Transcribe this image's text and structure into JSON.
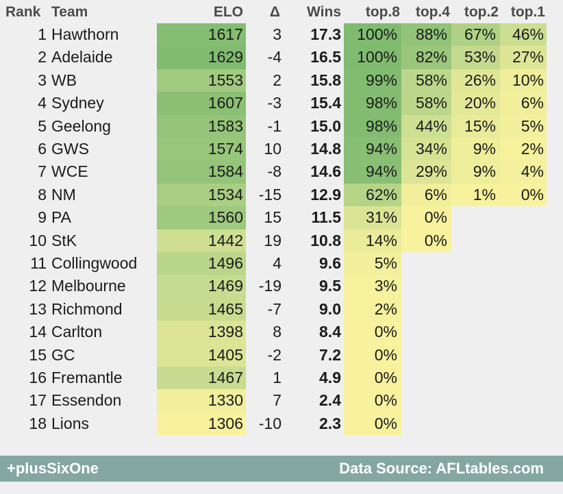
{
  "colors": {
    "high": "#80bb70",
    "mid": "#c7dc90",
    "low": "#f8f29e",
    "footer_bg": "#84a7a2"
  },
  "chart_data": {
    "type": "table",
    "columns": [
      "Rank",
      "Team",
      "ELO",
      "Δ",
      "Wins",
      "top.8",
      "top.4",
      "top.2",
      "top.1"
    ],
    "rows": [
      {
        "rank": "1",
        "team": "Hawthorn",
        "elo": "1617",
        "delta": "3",
        "wins": "17.3",
        "top8": "100%",
        "top4": "88%",
        "top2": "67%",
        "top1": "46%"
      },
      {
        "rank": "2",
        "team": "Adelaide",
        "elo": "1629",
        "delta": "-4",
        "wins": "16.5",
        "top8": "100%",
        "top4": "82%",
        "top2": "53%",
        "top1": "27%"
      },
      {
        "rank": "3",
        "team": "WB",
        "elo": "1553",
        "delta": "2",
        "wins": "15.8",
        "top8": "99%",
        "top4": "58%",
        "top2": "26%",
        "top1": "10%"
      },
      {
        "rank": "4",
        "team": "Sydney",
        "elo": "1607",
        "delta": "-3",
        "wins": "15.4",
        "top8": "98%",
        "top4": "58%",
        "top2": "20%",
        "top1": "6%"
      },
      {
        "rank": "5",
        "team": "Geelong",
        "elo": "1583",
        "delta": "-1",
        "wins": "15.0",
        "top8": "98%",
        "top4": "44%",
        "top2": "15%",
        "top1": "5%"
      },
      {
        "rank": "6",
        "team": "GWS",
        "elo": "1574",
        "delta": "10",
        "wins": "14.8",
        "top8": "94%",
        "top4": "34%",
        "top2": "9%",
        "top1": "2%"
      },
      {
        "rank": "7",
        "team": "WCE",
        "elo": "1584",
        "delta": "-8",
        "wins": "14.6",
        "top8": "94%",
        "top4": "29%",
        "top2": "9%",
        "top1": "4%"
      },
      {
        "rank": "8",
        "team": "NM",
        "elo": "1534",
        "delta": "-15",
        "wins": "12.9",
        "top8": "62%",
        "top4": "6%",
        "top2": "1%",
        "top1": "0%"
      },
      {
        "rank": "9",
        "team": "PA",
        "elo": "1560",
        "delta": "15",
        "wins": "11.5",
        "top8": "31%",
        "top4": "0%",
        "top2": "",
        "top1": ""
      },
      {
        "rank": "10",
        "team": "StK",
        "elo": "1442",
        "delta": "19",
        "wins": "10.8",
        "top8": "14%",
        "top4": "0%",
        "top2": "",
        "top1": ""
      },
      {
        "rank": "11",
        "team": "Collingwood",
        "elo": "1496",
        "delta": "4",
        "wins": "9.6",
        "top8": "5%",
        "top4": "",
        "top2": "",
        "top1": ""
      },
      {
        "rank": "12",
        "team": "Melbourne",
        "elo": "1469",
        "delta": "-19",
        "wins": "9.5",
        "top8": "3%",
        "top4": "",
        "top2": "",
        "top1": ""
      },
      {
        "rank": "13",
        "team": "Richmond",
        "elo": "1465",
        "delta": "-7",
        "wins": "9.0",
        "top8": "2%",
        "top4": "",
        "top2": "",
        "top1": ""
      },
      {
        "rank": "14",
        "team": "Carlton",
        "elo": "1398",
        "delta": "8",
        "wins": "8.4",
        "top8": "0%",
        "top4": "",
        "top2": "",
        "top1": ""
      },
      {
        "rank": "15",
        "team": "GC",
        "elo": "1405",
        "delta": "-2",
        "wins": "7.2",
        "top8": "0%",
        "top4": "",
        "top2": "",
        "top1": ""
      },
      {
        "rank": "16",
        "team": "Fremantle",
        "elo": "1467",
        "delta": "1",
        "wins": "4.9",
        "top8": "0%",
        "top4": "",
        "top2": "",
        "top1": ""
      },
      {
        "rank": "17",
        "team": "Essendon",
        "elo": "1330",
        "delta": "7",
        "wins": "2.4",
        "top8": "0%",
        "top4": "",
        "top2": "",
        "top1": ""
      },
      {
        "rank": "18",
        "team": "Lions",
        "elo": "1306",
        "delta": "-10",
        "wins": "2.3",
        "top8": "0%",
        "top4": "",
        "top2": "",
        "top1": ""
      }
    ]
  },
  "footer": {
    "left": "+plusSixOne",
    "right": "Data Source: AFLtables.com"
  }
}
